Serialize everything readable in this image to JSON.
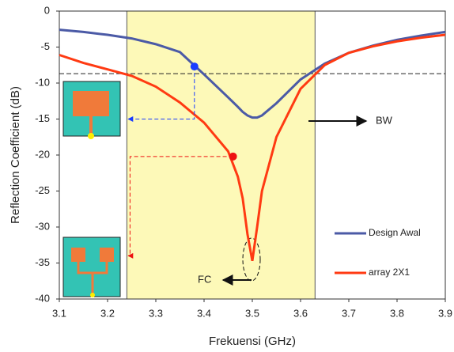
{
  "chart_data": {
    "type": "line",
    "x_label": "Frekuensi (GHz)",
    "y_label": "Reflection Coefficient (dB)",
    "x": [
      3.1,
      3.15,
      3.2,
      3.25,
      3.3,
      3.35,
      3.4,
      3.45,
      3.47,
      3.48,
      3.49,
      3.5,
      3.51,
      3.52,
      3.55,
      3.6,
      3.65,
      3.7,
      3.75,
      3.8,
      3.85,
      3.9
    ],
    "series": [
      {
        "name": "Design Awal",
        "color": "#4b5aa6",
        "values": [
          -2.6,
          -2.9,
          -3.3,
          -3.8,
          -4.6,
          -5.7,
          -8.8,
          -12.0,
          -13.3,
          -14.0,
          -14.5,
          -14.8,
          -14.8,
          -14.5,
          -12.8,
          -9.5,
          -7.3,
          -5.8,
          -4.8,
          -4.0,
          -3.4,
          -2.9
        ]
      },
      {
        "name": "array 2X1",
        "color": "#ff3a12",
        "values": [
          -6.1,
          -7.2,
          -8.1,
          -9.0,
          -10.5,
          -12.7,
          -15.5,
          -19.5,
          -23,
          -26,
          -31,
          -34.7,
          -30,
          -25,
          -17.5,
          -10.8,
          -7.5,
          -5.8,
          -4.9,
          -4.2,
          -3.7,
          -3.3
        ]
      }
    ],
    "points": [
      {
        "x": 3.38,
        "y": -7.7,
        "color": "#1a3cff"
      },
      {
        "x": 3.46,
        "y": -20.2,
        "color": "#ee1111"
      }
    ],
    "band": [
      3.24,
      3.63
    ],
    "threshold": -8.7,
    "annotations": [
      "BW",
      "FC"
    ],
    "xlim": [
      3.1,
      3.9
    ],
    "xticks": [
      3.1,
      3.2,
      3.3,
      3.4,
      3.5,
      3.6,
      3.7,
      3.8,
      3.9
    ],
    "ylim": [
      -40,
      0
    ],
    "yticks": [
      0,
      -5,
      -10,
      -15,
      -20,
      -25,
      -30,
      -35,
      -40
    ]
  }
}
